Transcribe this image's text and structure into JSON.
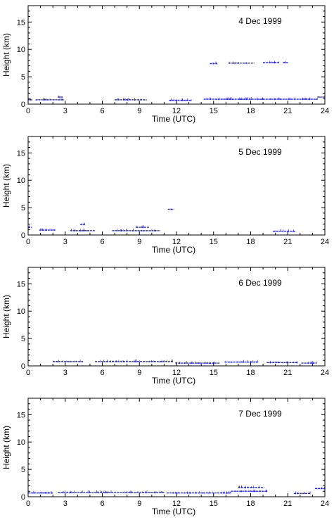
{
  "chart_data": [
    {
      "type": "scatter",
      "title": "4 Dec 1999",
      "xlabel": "Time (UTC)",
      "ylabel": "Height (km)",
      "xlim": [
        0,
        24
      ],
      "ylim": [
        0,
        18
      ],
      "xticks": [
        0,
        3,
        6,
        9,
        12,
        15,
        18,
        21,
        24
      ],
      "yticks": [
        0,
        5,
        10,
        15
      ],
      "grid": false,
      "color": "#0000ff",
      "segments": [
        {
          "x": [
            0.0,
            0.3
          ],
          "y": 0.8
        },
        {
          "x": [
            0.6,
            2.9
          ],
          "y": 0.8
        },
        {
          "x": [
            2.4,
            2.8
          ],
          "y": 1.3
        },
        {
          "x": [
            7.0,
            9.6
          ],
          "y": 0.8
        },
        {
          "x": [
            11.4,
            13.2
          ],
          "y": 0.7
        },
        {
          "x": [
            14.2,
            23.4
          ],
          "y": 0.9
        },
        {
          "x": [
            23.4,
            24.0
          ],
          "y": 1.3
        },
        {
          "x": [
            14.7,
            15.3
          ],
          "y": 7.4
        },
        {
          "x": [
            16.2,
            18.3
          ],
          "y": 7.5
        },
        {
          "x": [
            19.0,
            20.3
          ],
          "y": 7.6
        },
        {
          "x": [
            20.6,
            21.0
          ],
          "y": 7.6
        }
      ]
    },
    {
      "type": "scatter",
      "title": "5 Dec 1999",
      "xlabel": "Time (UTC)",
      "ylabel": "Height (km)",
      "xlim": [
        0,
        24
      ],
      "ylim": [
        0,
        18
      ],
      "xticks": [
        0,
        3,
        6,
        9,
        12,
        15,
        18,
        21,
        24
      ],
      "yticks": [
        0,
        5,
        10,
        15
      ],
      "grid": false,
      "color": "#0000ff",
      "segments": [
        {
          "x": [
            0.0,
            0.3
          ],
          "y": 1.4
        },
        {
          "x": [
            0.9,
            2.2
          ],
          "y": 0.9
        },
        {
          "x": [
            3.4,
            5.4
          ],
          "y": 0.8
        },
        {
          "x": [
            4.2,
            4.6
          ],
          "y": 1.9
        },
        {
          "x": [
            6.8,
            10.7
          ],
          "y": 0.8
        },
        {
          "x": [
            8.7,
            9.8
          ],
          "y": 1.4
        },
        {
          "x": [
            11.3,
            11.8
          ],
          "y": 4.7
        },
        {
          "x": [
            19.8,
            21.6
          ],
          "y": 0.7
        }
      ]
    },
    {
      "type": "scatter",
      "title": "6 Dec 1999",
      "xlabel": "Time (UTC)",
      "ylabel": "Height (km)",
      "xlim": [
        0,
        24
      ],
      "ylim": [
        0,
        18
      ],
      "xticks": [
        0,
        3,
        6,
        9,
        12,
        15,
        18,
        21,
        24
      ],
      "yticks": [
        0,
        5,
        10,
        15
      ],
      "grid": false,
      "color": "#0000ff",
      "segments": [
        {
          "x": [
            2.0,
            4.5
          ],
          "y": 0.8
        },
        {
          "x": [
            5.4,
            11.7
          ],
          "y": 0.8
        },
        {
          "x": [
            11.9,
            15.5
          ],
          "y": 0.5
        },
        {
          "x": [
            15.9,
            18.6
          ],
          "y": 0.7
        },
        {
          "x": [
            19.3,
            21.8
          ],
          "y": 0.6
        },
        {
          "x": [
            22.1,
            23.3
          ],
          "y": 0.5
        }
      ]
    },
    {
      "type": "scatter",
      "title": "7 Dec 1999",
      "xlabel": "Time (UTC)",
      "ylabel": "Height (km)",
      "xlim": [
        0,
        24
      ],
      "ylim": [
        0,
        18
      ],
      "xticks": [
        0,
        3,
        6,
        9,
        12,
        15,
        18,
        21,
        24
      ],
      "yticks": [
        0,
        5,
        10,
        15
      ],
      "grid": false,
      "color": "#0000ff",
      "segments": [
        {
          "x": [
            0.0,
            2.0
          ],
          "y": 0.7
        },
        {
          "x": [
            2.4,
            11.0
          ],
          "y": 0.8
        },
        {
          "x": [
            11.2,
            16.4
          ],
          "y": 0.7
        },
        {
          "x": [
            16.4,
            19.3
          ],
          "y": 1.0
        },
        {
          "x": [
            17.0,
            19.1
          ],
          "y": 1.7
        },
        {
          "x": [
            21.5,
            22.8
          ],
          "y": 0.6
        },
        {
          "x": [
            23.2,
            24.0
          ],
          "y": 1.5
        }
      ]
    }
  ]
}
